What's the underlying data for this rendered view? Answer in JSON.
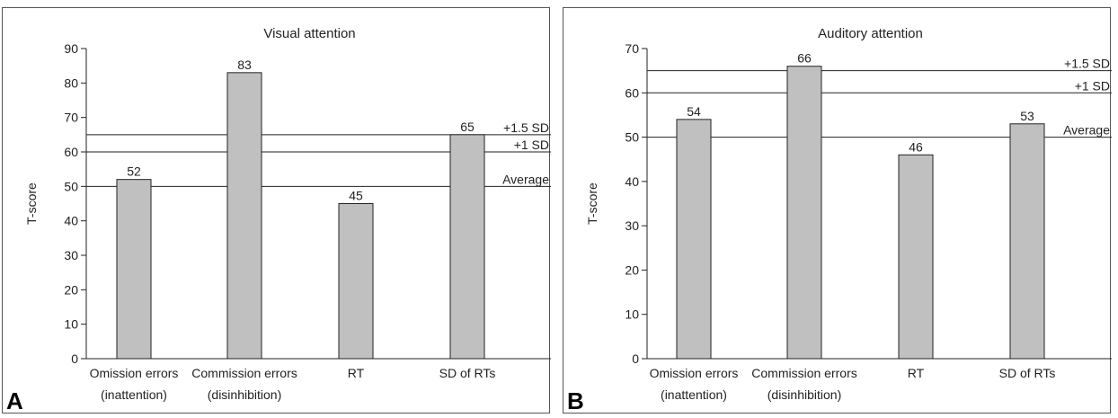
{
  "chart_data": [
    {
      "panel": "A",
      "type": "bar",
      "title": "Visual attention",
      "ylabel": "T-score",
      "ylim": [
        0,
        90
      ],
      "yticks": [
        0,
        10,
        20,
        30,
        40,
        50,
        60,
        70,
        80,
        90
      ],
      "categories": [
        [
          "Omission errors",
          "(inattention)"
        ],
        [
          "Commission errors",
          "(disinhibition)"
        ],
        [
          "RT"
        ],
        [
          "SD of RTs"
        ]
      ],
      "values": [
        52,
        83,
        45,
        65
      ],
      "data_labels": [
        "52",
        "83",
        "45",
        "65"
      ],
      "reference_lines": [
        {
          "value": 65,
          "label": "+1.5 SD"
        },
        {
          "value": 60,
          "label": "+1 SD"
        },
        {
          "value": 50,
          "label": "Average"
        }
      ],
      "bar_color": "#c0c0c0"
    },
    {
      "panel": "B",
      "type": "bar",
      "title": "Auditory attention",
      "ylabel": "T-score",
      "ylim": [
        0,
        70
      ],
      "yticks": [
        0,
        10,
        20,
        30,
        40,
        50,
        60,
        70
      ],
      "categories": [
        [
          "Omission errors",
          "(inattention)"
        ],
        [
          "Commission errors",
          "(disinhibition)"
        ],
        [
          "RT"
        ],
        [
          "SD of RTs"
        ]
      ],
      "values": [
        54,
        66,
        46,
        53
      ],
      "data_labels": [
        "54",
        "66",
        "46",
        "53"
      ],
      "reference_lines": [
        {
          "value": 65,
          "label": "+1.5 SD"
        },
        {
          "value": 60,
          "label": "+1 SD"
        },
        {
          "value": 50,
          "label": "Average"
        }
      ],
      "bar_color": "#c0c0c0"
    }
  ]
}
